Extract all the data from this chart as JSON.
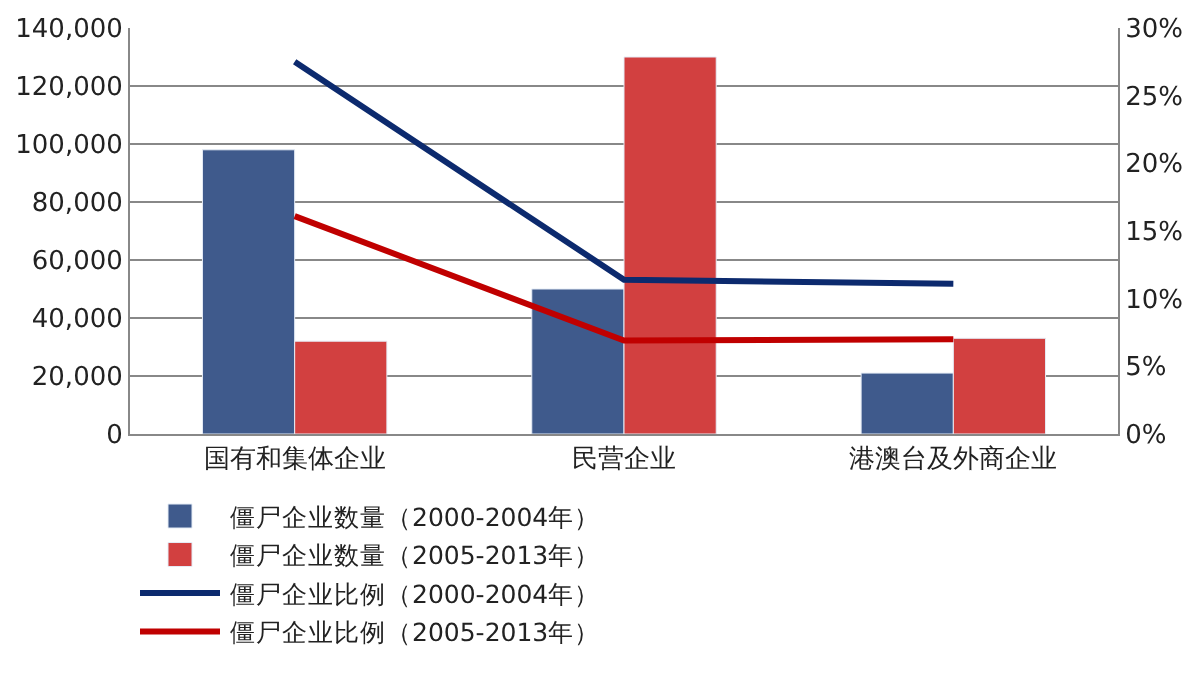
{
  "chart_data": {
    "type": "bar",
    "categories": [
      "国有和集体企业",
      "民营企业",
      "港澳台及外商企业"
    ],
    "series": [
      {
        "name": "僵尸企业数量（2000-2004年）",
        "color": "#3f5a8c",
        "values": [
          98000,
          50000,
          21000
        ]
      },
      {
        "name": "僵尸企业数量（2005-2013年）",
        "color": "#d24040",
        "values": [
          32000,
          130000,
          33000
        ]
      },
      {
        "name": "僵尸企业比例（2000-2004年）",
        "color": "#0c2a6e",
        "type": "line",
        "axis": "y2",
        "values": [
          27.5,
          11.4,
          11.1
        ]
      },
      {
        "name": "僵尸企业比例（2005-2013年）",
        "color": "#c00000",
        "type": "line",
        "axis": "y2",
        "values": [
          16.1,
          6.9,
          7.0
        ]
      }
    ],
    "ylim": [
      0,
      140000
    ],
    "yticks": [
      {
        "value": 0,
        "label": "0"
      },
      {
        "value": 20000,
        "label": "20,000"
      },
      {
        "value": 40000,
        "label": "40,000"
      },
      {
        "value": 60000,
        "label": "60,000"
      },
      {
        "value": 80000,
        "label": "80,000"
      },
      {
        "value": 100000,
        "label": "100,000"
      },
      {
        "value": 120000,
        "label": "120,000"
      },
      {
        "value": 140000,
        "label": "140,000"
      }
    ],
    "y2lim": [
      0,
      30
    ],
    "y2ticks": [
      {
        "value": 0,
        "label": "0%"
      },
      {
        "value": 5,
        "label": "5%"
      },
      {
        "value": 10,
        "label": "10%"
      },
      {
        "value": 15,
        "label": "15%"
      },
      {
        "value": 20,
        "label": "20%"
      },
      {
        "value": 25,
        "label": "25%"
      },
      {
        "value": 30,
        "label": "30%"
      }
    ],
    "grid": "y",
    "legend": "bottom",
    "marker": "none",
    "line_style": "solid"
  }
}
